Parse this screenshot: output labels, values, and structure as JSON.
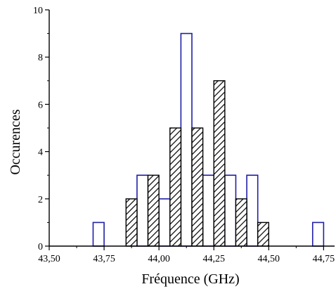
{
  "chart_data": {
    "type": "bar",
    "xlabel": "Fréquence (GHz)",
    "ylabel": "Occurences",
    "xlim": [
      43.5,
      44.8
    ],
    "ylim": [
      0,
      10
    ],
    "bin_width": 0.05,
    "x_ticks": [
      {
        "value": 43.5,
        "label": "43,50"
      },
      {
        "value": 43.75,
        "label": "43,75"
      },
      {
        "value": 44.0,
        "label": "44,00"
      },
      {
        "value": 44.25,
        "label": "44,25"
      },
      {
        "value": 44.5,
        "label": "44,50"
      },
      {
        "value": 44.75,
        "label": "44,75"
      }
    ],
    "y_ticks": [
      {
        "value": 0,
        "label": "0"
      },
      {
        "value": 2,
        "label": "2"
      },
      {
        "value": 4,
        "label": "4"
      },
      {
        "value": 6,
        "label": "6"
      },
      {
        "value": 8,
        "label": "8"
      },
      {
        "value": 10,
        "label": "10"
      }
    ],
    "series": [
      {
        "style": "outline",
        "color": "#1f1fa6",
        "bins": [
          {
            "x": 43.7,
            "count": 1
          },
          {
            "x": 43.9,
            "count": 3
          },
          {
            "x": 44.0,
            "count": 2
          },
          {
            "x": 44.1,
            "count": 9
          },
          {
            "x": 44.2,
            "count": 3
          },
          {
            "x": 44.3,
            "count": 3
          },
          {
            "x": 44.4,
            "count": 3
          },
          {
            "x": 44.7,
            "count": 1
          }
        ]
      },
      {
        "style": "hatched",
        "color": "#000000",
        "bins": [
          {
            "x": 43.85,
            "count": 2
          },
          {
            "x": 43.95,
            "count": 3
          },
          {
            "x": 44.05,
            "count": 5
          },
          {
            "x": 44.15,
            "count": 5
          },
          {
            "x": 44.25,
            "count": 7
          },
          {
            "x": 44.35,
            "count": 2
          },
          {
            "x": 44.45,
            "count": 1
          }
        ]
      }
    ]
  }
}
